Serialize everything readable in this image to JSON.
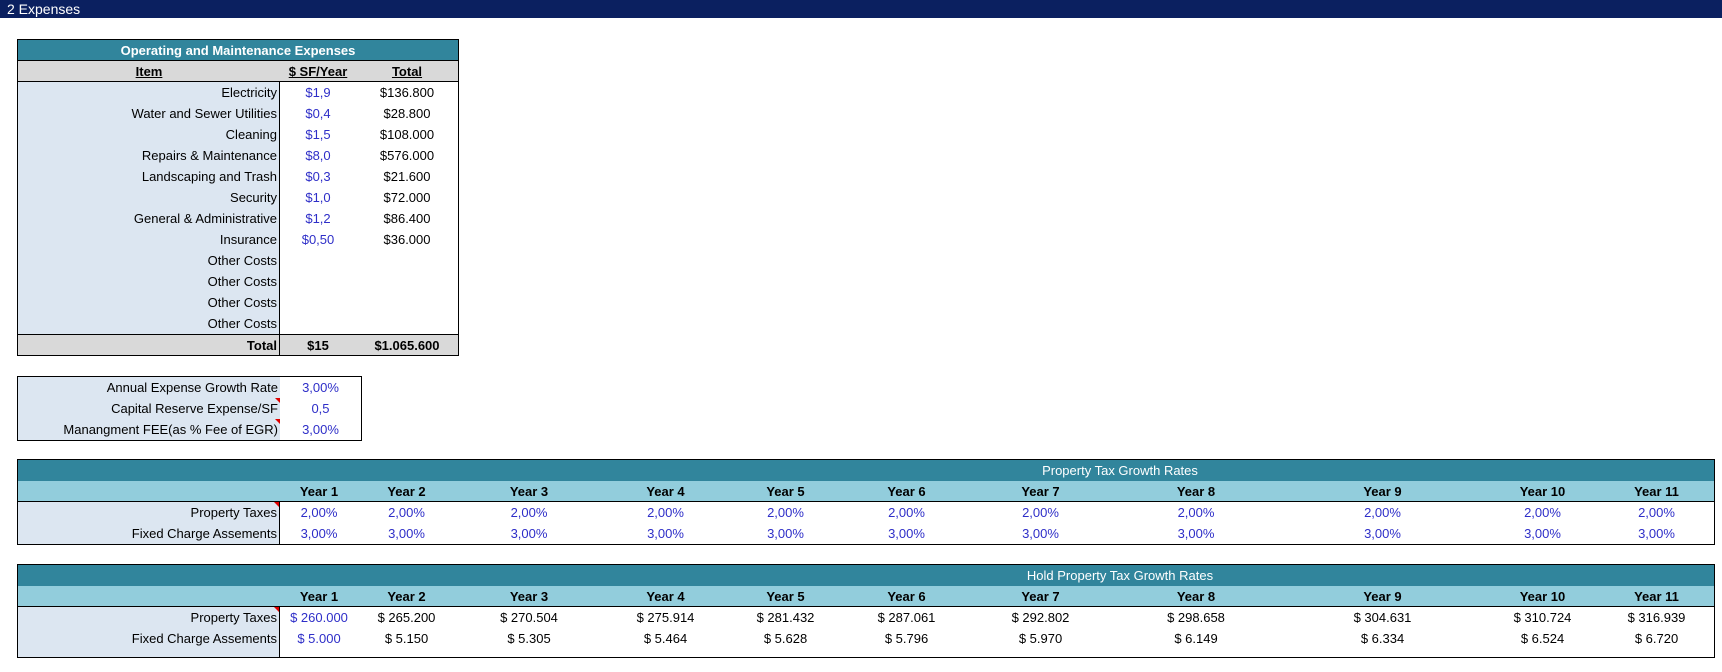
{
  "window": {
    "title": "2 Expenses"
  },
  "opex": {
    "title": "Operating and Maintenance Expenses",
    "headers": {
      "item": "Item",
      "sf_year": "$ SF/Year",
      "total": "Total"
    },
    "rows": [
      {
        "item": "Electricity",
        "sf": "$1,9",
        "total": "$136.800"
      },
      {
        "item": "Water and Sewer Utilities",
        "sf": "$0,4",
        "total": "$28.800"
      },
      {
        "item": "Cleaning",
        "sf": "$1,5",
        "total": "$108.000"
      },
      {
        "item": "Repairs & Maintenance",
        "sf": "$8,0",
        "total": "$576.000"
      },
      {
        "item": "Landscaping and Trash",
        "sf": "$0,3",
        "total": "$21.600"
      },
      {
        "item": "Security",
        "sf": "$1,0",
        "total": "$72.000"
      },
      {
        "item": "General & Administrative",
        "sf": "$1,2",
        "total": "$86.400"
      },
      {
        "item": "Insurance",
        "sf": "$0,50",
        "total": "$36.000"
      },
      {
        "item": "Other Costs",
        "sf": "",
        "total": ""
      },
      {
        "item": "Other Costs",
        "sf": "",
        "total": ""
      },
      {
        "item": "Other Costs",
        "sf": "",
        "total": ""
      },
      {
        "item": "Other Costs",
        "sf": "",
        "total": ""
      }
    ],
    "total_row": {
      "label": "Total",
      "sf": "$15",
      "total": "$1.065.600"
    }
  },
  "assumptions": [
    {
      "label": "Annual Expense Growth Rate",
      "value": "3,00%"
    },
    {
      "label": "Capital Reserve Expense/SF",
      "value": "0,5"
    },
    {
      "label": "Manangment FEE(as %  Fee of EGR)",
      "value": "3,00%"
    }
  ],
  "tax_growth": {
    "title": "Property  Tax Growth Rates",
    "years": [
      "Year 1",
      "Year 2",
      "Year 3",
      "Year 4",
      "Year 5",
      "Year 6",
      "Year 7",
      "Year 8",
      "Year 9",
      "Year 10",
      "Year 11"
    ],
    "rows": [
      {
        "label": "Property  Taxes",
        "values": [
          "2,00%",
          "2,00%",
          "2,00%",
          "2,00%",
          "2,00%",
          "2,00%",
          "2,00%",
          "2,00%",
          "2,00%",
          "2,00%",
          "2,00%"
        ]
      },
      {
        "label": "Fixed Charge Assements",
        "values": [
          "3,00%",
          "3,00%",
          "3,00%",
          "3,00%",
          "3,00%",
          "3,00%",
          "3,00%",
          "3,00%",
          "3,00%",
          "3,00%",
          "3,00%"
        ]
      }
    ]
  },
  "hold_tax": {
    "title": "Hold Property  Tax Growth Rates",
    "years": [
      "Year 1",
      "Year 2",
      "Year 3",
      "Year 4",
      "Year 5",
      "Year 6",
      "Year 7",
      "Year 8",
      "Year 9",
      "Year 10",
      "Year 11"
    ],
    "rows": [
      {
        "label": "Property  Taxes",
        "values": [
          "$ 260.000",
          "$ 265.200",
          "$ 270.504",
          "$ 275.914",
          "$ 281.432",
          "$ 287.061",
          "$ 292.802",
          "$ 298.658",
          "$ 304.631",
          "$ 310.724",
          "$ 316.939"
        ]
      },
      {
        "label": "Fixed Charge Assements",
        "values": [
          "$ 5.000",
          "$ 5.150",
          "$ 5.305",
          "$ 5.464",
          "$ 5.628",
          "$ 5.796",
          "$ 5.970",
          "$ 6.149",
          "$ 6.334",
          "$ 6.524",
          "$ 6.720"
        ]
      }
    ]
  }
}
